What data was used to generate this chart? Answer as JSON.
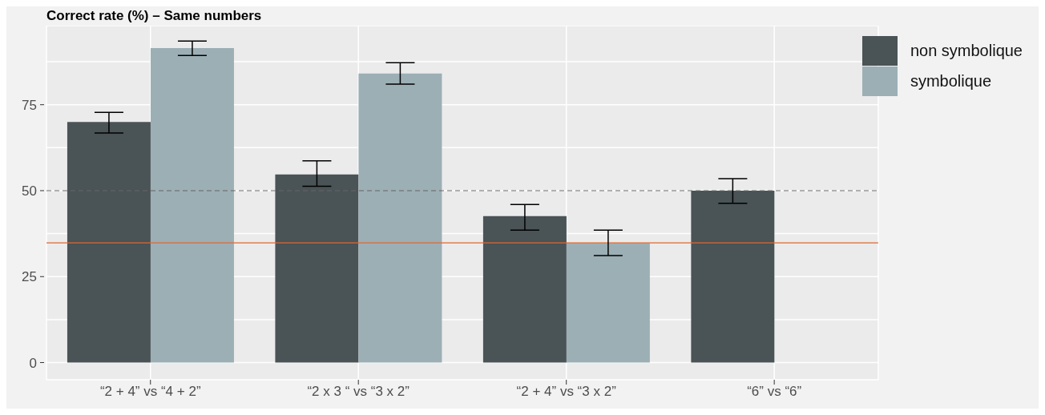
{
  "chart_data": {
    "type": "bar",
    "title": "Correct rate (%) – Same numbers",
    "categories": [
      "“2 + 4” vs “4 + 2”",
      "“2 x 3 “ vs “3 x 2”",
      "“2 + 4” vs “3 x 2”",
      "“6”  vs “6”"
    ],
    "series": [
      {
        "name": "non symbolique",
        "color": "#4a5356",
        "values": [
          70.0,
          54.7,
          42.6,
          50.0
        ],
        "errors": [
          [
            66.8,
            72.8
          ],
          [
            51.3,
            58.7
          ],
          [
            38.5,
            46.0
          ],
          [
            46.3,
            53.5
          ]
        ]
      },
      {
        "name": "symbolique",
        "color": "#9cafb5",
        "values": [
          91.5,
          84.1,
          34.8,
          null
        ],
        "errors": [
          [
            89.3,
            93.5
          ],
          [
            81.0,
            87.2
          ],
          [
            31.1,
            38.5
          ],
          null
        ]
      }
    ],
    "ylim": [
      -5,
      98
    ],
    "yticks": [
      0,
      {
        "value": 12.5,
        "label": null
      },
      25,
      {
        "value": 37.5,
        "label": null
      },
      50,
      {
        "value": 62.5,
        "label": null
      },
      75,
      {
        "value": 87.5,
        "label": null
      }
    ],
    "ref_lines": [
      {
        "axis": "y",
        "value": 50,
        "color": "#666666",
        "line_style": "dashed"
      },
      {
        "axis": "y",
        "value": 34.8,
        "color": "#e0692e",
        "line_style": "solid"
      }
    ],
    "grid": true,
    "legend": "top right"
  }
}
